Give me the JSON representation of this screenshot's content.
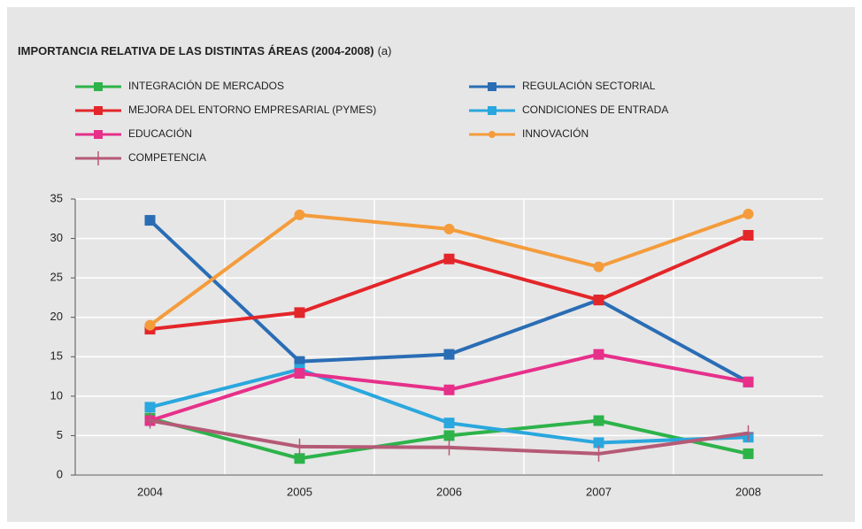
{
  "chart_data": {
    "type": "line",
    "title": "IMPORTANCIA RELATIVA DE LAS DISTINTAS ÁREAS (2004-2008)",
    "annotation": "(a)",
    "categories": [
      "2004",
      "2005",
      "2006",
      "2007",
      "2008"
    ],
    "series": [
      {
        "name": "INTEGRACIÓN DE MERCADOS",
        "color": "#2db34a",
        "marker": "square",
        "values": [
          7.2,
          2.1,
          5.0,
          6.9,
          2.7
        ]
      },
      {
        "name": "REGULACIÓN SECTORIAL",
        "color": "#2a6db5",
        "marker": "square",
        "values": [
          32.3,
          14.4,
          15.3,
          22.2,
          11.8
        ]
      },
      {
        "name": "MEJORA DEL ENTORNO EMPRESARIAL (PYMES)",
        "color": "#e3262a",
        "marker": "square",
        "values": [
          18.5,
          20.6,
          27.4,
          22.2,
          30.4
        ]
      },
      {
        "name": "CONDICIONES DE ENTRADA",
        "color": "#2aa7de",
        "marker": "square",
        "values": [
          8.6,
          13.4,
          6.6,
          4.1,
          4.8
        ]
      },
      {
        "name": "EDUCACIÓN",
        "color": "#e6308a",
        "marker": "square",
        "values": [
          6.9,
          12.9,
          10.8,
          15.3,
          11.8
        ]
      },
      {
        "name": "INNOVACIÓN",
        "color": "#f49c3c",
        "marker": "circle",
        "values": [
          19.0,
          33.0,
          31.2,
          26.4,
          33.1
        ]
      },
      {
        "name": "COMPETENCIA",
        "color": "#b55a76",
        "marker": "plus",
        "values": [
          6.9,
          3.6,
          3.5,
          2.7,
          5.3
        ]
      }
    ],
    "ylim": [
      0,
      35
    ],
    "yticks": [
      0,
      5,
      10,
      15,
      20,
      25,
      30,
      35
    ],
    "grid": true
  }
}
